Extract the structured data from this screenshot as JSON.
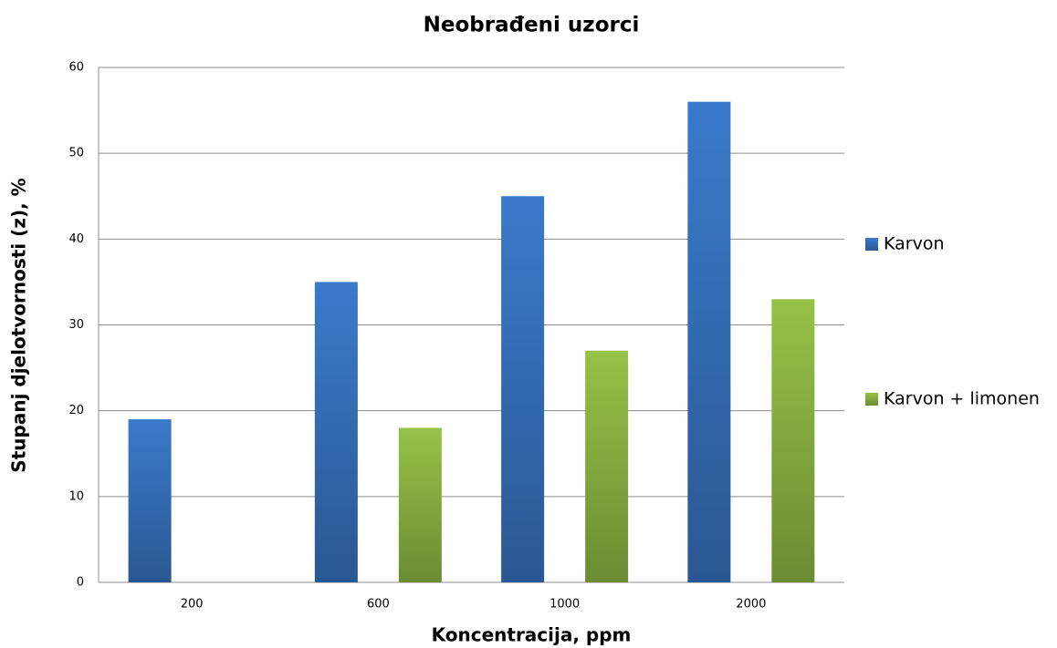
{
  "chart_data": {
    "type": "bar",
    "title": "Neobrađeni uzorci",
    "x_label": "Koncentracija,  ppm",
    "y_label": "Stupanj  djelotvornosti  (z), %",
    "categories": [
      "200",
      "600",
      "1000",
      "2000"
    ],
    "series": [
      {
        "name": "Karvon",
        "color": "#3a7acb",
        "values": [
          19,
          35,
          45,
          56
        ]
      },
      {
        "name": "Karvon + limonen",
        "color": "#95c247",
        "values": [
          null,
          18,
          27,
          33
        ]
      }
    ],
    "ylim": [
      0,
      60
    ],
    "yticks": [
      0,
      10,
      20,
      30,
      40,
      50,
      60
    ],
    "grid": true,
    "legend": "right"
  }
}
